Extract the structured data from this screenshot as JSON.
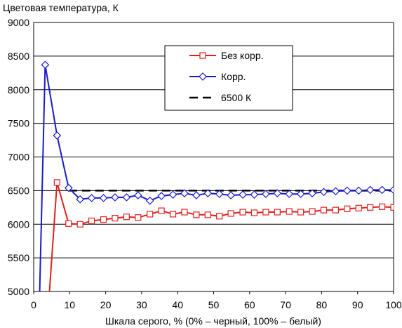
{
  "chart_data": {
    "type": "line",
    "title": "",
    "ylabel": "Цветовая температура, К",
    "xlabel": "Шкала серого, % (0% – черный, 100% – белый)",
    "xlim": [
      0,
      100
    ],
    "ylim": [
      5000,
      9000
    ],
    "xticks": [
      "0",
      "10",
      "20",
      "30",
      "40",
      "50",
      "60",
      "70",
      "80",
      "90",
      "100"
    ],
    "yticks": [
      "5000",
      "5500",
      "6000",
      "6500",
      "7000",
      "7500",
      "8000",
      "8500",
      "9000"
    ],
    "grid": "horizontal",
    "legend_position": "top-right",
    "series": [
      {
        "name": "Без корр.",
        "color": "#e02020",
        "marker": "square",
        "x": [
          4.2,
          6.5,
          9.7,
          12.9,
          16.1,
          19.4,
          22.6,
          25.8,
          29.0,
          32.3,
          35.5,
          38.7,
          41.9,
          45.2,
          48.4,
          51.6,
          54.8,
          58.1,
          61.3,
          64.5,
          67.7,
          71.0,
          74.2,
          77.4,
          80.6,
          83.9,
          87.1,
          90.3,
          93.5,
          96.8,
          100
        ],
        "y": [
          4850,
          6620,
          6010,
          6000,
          6050,
          6070,
          6090,
          6110,
          6100,
          6150,
          6200,
          6150,
          6180,
          6140,
          6140,
          6120,
          6160,
          6180,
          6170,
          6180,
          6180,
          6190,
          6180,
          6190,
          6210,
          6210,
          6230,
          6240,
          6250,
          6260,
          6250
        ]
      },
      {
        "name": "Корр.",
        "color": "#1a1acc",
        "marker": "diamond",
        "x": [
          1.6,
          3.2,
          6.5,
          9.7,
          12.9,
          16.1,
          19.4,
          22.6,
          25.8,
          29.0,
          32.3,
          35.5,
          38.7,
          41.9,
          45.2,
          48.4,
          51.6,
          54.8,
          58.1,
          61.3,
          64.5,
          67.7,
          71.0,
          74.2,
          77.4,
          80.6,
          83.9,
          87.1,
          90.3,
          93.5,
          96.8,
          100
        ],
        "y": [
          4850,
          8370,
          7320,
          6540,
          6370,
          6390,
          6390,
          6400,
          6400,
          6430,
          6350,
          6420,
          6440,
          6460,
          6430,
          6460,
          6450,
          6430,
          6440,
          6440,
          6450,
          6460,
          6450,
          6450,
          6460,
          6480,
          6490,
          6500,
          6500,
          6510,
          6510,
          6510
        ]
      },
      {
        "name": "6500 К",
        "color": "#000000",
        "marker": "none",
        "dashed": true,
        "x": [
          9.7,
          100
        ],
        "y": [
          6500,
          6500
        ]
      }
    ]
  }
}
